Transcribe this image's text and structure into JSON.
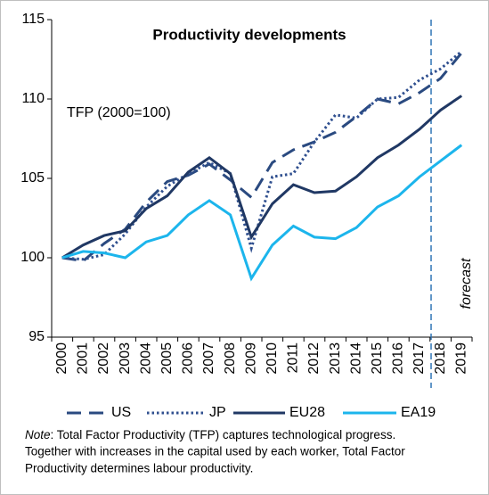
{
  "chart_data": {
    "type": "line",
    "title": "Productivity developments",
    "subtitle": "TFP (2000=100)",
    "annotation": "forecast",
    "categories": [
      "2000",
      "2001",
      "2002",
      "2003",
      "2004",
      "2005",
      "2006",
      "2007",
      "2008",
      "2009",
      "2010",
      "2011",
      "2012",
      "2013",
      "2014",
      "2015",
      "2016",
      "2017",
      "2018",
      "2019"
    ],
    "series": [
      {
        "name": "US",
        "color": "#2a4a80",
        "style": "dashed",
        "values": [
          100,
          99.8,
          100.9,
          101.8,
          103.5,
          104.8,
          105.2,
          105.9,
          104.9,
          103.8,
          106.0,
          106.8,
          107.3,
          107.9,
          108.9,
          110.0,
          109.7,
          110.4,
          111.3,
          112.9
        ]
      },
      {
        "name": "JP",
        "color": "#2f4f8f",
        "style": "dotted",
        "values": [
          100,
          99.9,
          100.2,
          101.5,
          103.2,
          104.5,
          105.3,
          106.0,
          105.3,
          100.6,
          105.1,
          105.3,
          107.3,
          109.0,
          108.8,
          110.0,
          110.1,
          111.2,
          111.9,
          113.0
        ]
      },
      {
        "name": "EU28",
        "color": "#203864",
        "style": "solid",
        "values": [
          100,
          100.8,
          101.4,
          101.7,
          103.1,
          103.9,
          105.4,
          106.3,
          105.3,
          101.3,
          103.4,
          104.6,
          104.1,
          104.2,
          105.1,
          106.3,
          107.1,
          108.1,
          109.3,
          110.2
        ]
      },
      {
        "name": "EA19",
        "color": "#1cb5ec",
        "style": "solid",
        "values": [
          100,
          100.4,
          100.3,
          100.0,
          101.0,
          101.4,
          102.7,
          103.6,
          102.7,
          98.7,
          100.8,
          102.0,
          101.3,
          101.2,
          101.9,
          103.2,
          103.9,
          105.1,
          106.1,
          107.1
        ]
      }
    ],
    "ylim": [
      95,
      115
    ],
    "yticks": [
      95,
      100,
      105,
      110,
      115
    ],
    "note": {
      "label": "Note",
      "lines": [
        ": Total Factor Productivity (TFP) captures technological progress.",
        "Together with increases in the capital used by each worker, Total Factor",
        "Productivity determines labour productivity."
      ]
    }
  }
}
